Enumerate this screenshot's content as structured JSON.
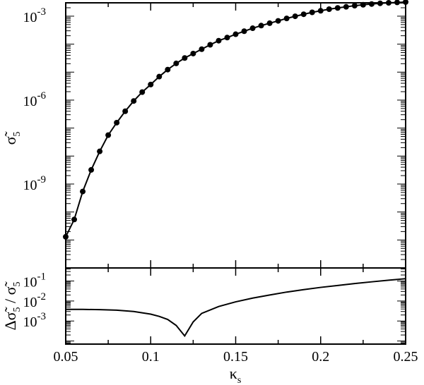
{
  "chart_data": [
    {
      "type": "scatter",
      "panel": "top",
      "xlabel": "κs",
      "ylabel": "σ̃5",
      "xlim": [
        0.05,
        0.25
      ],
      "ylim": [
        1e-12,
        0.003
      ],
      "yscale": "log",
      "xticks": [
        "0.05",
        "0.1",
        "0.15",
        "0.2",
        "0.25"
      ],
      "yticks": [
        {
          "value": 1e-09,
          "base": "10",
          "exp": "-9"
        },
        {
          "value": 1e-06,
          "base": "10",
          "exp": "-6"
        },
        {
          "value": 0.001,
          "base": "10",
          "exp": "-3"
        }
      ],
      "line_color": "#000000",
      "marker": "filled-circle",
      "series": [
        {
          "x": [
            0.05,
            0.055,
            0.06,
            0.065,
            0.07,
            0.075,
            0.08,
            0.085,
            0.09,
            0.095,
            0.1,
            0.105,
            0.11,
            0.115,
            0.12,
            0.125,
            0.13,
            0.135,
            0.14,
            0.145,
            0.15,
            0.155,
            0.16,
            0.165,
            0.17,
            0.175,
            0.18,
            0.185,
            0.19,
            0.195,
            0.2,
            0.205,
            0.21,
            0.215,
            0.22,
            0.225,
            0.23,
            0.235,
            0.24,
            0.245,
            0.25
          ],
          "y": [
            1.3e-11,
            5.4e-11,
            5.4e-10,
            3.2e-09,
            1.47e-08,
            5.6e-08,
            1.56e-07,
            4e-07,
            9.3e-07,
            1.93e-06,
            3.6e-06,
            6.9e-06,
            1.23e-05,
            2.05e-05,
            3.2e-05,
            4.6e-05,
            6.6e-05,
            9.5e-05,
            0.000133,
            0.000172,
            0.000226,
            0.00029,
            0.00037,
            0.00046,
            0.00056,
            0.00068,
            0.00083,
            0.00099,
            0.00117,
            0.00137,
            0.00156,
            0.00178,
            0.00197,
            0.00216,
            0.00237,
            0.00255,
            0.00272,
            0.00288,
            0.003,
            0.0031,
            0.0032
          ]
        }
      ]
    },
    {
      "type": "line",
      "panel": "bottom",
      "xlabel": "κs",
      "ylabel": "Δσ̃5 / σ̃5",
      "xlim": [
        0.05,
        0.25
      ],
      "ylim": [
        7e-05,
        0.45
      ],
      "yscale": "log",
      "yticks": [
        {
          "value": 0.001,
          "base": "10",
          "exp": "-3"
        },
        {
          "value": 0.01,
          "base": "10",
          "exp": "-2"
        },
        {
          "value": 0.1,
          "base": "10",
          "exp": "-1"
        }
      ],
      "line_color": "#000000",
      "series": [
        {
          "x": [
            0.05,
            0.06,
            0.07,
            0.08,
            0.09,
            0.1,
            0.105,
            0.11,
            0.115,
            0.12,
            0.125,
            0.13,
            0.14,
            0.15,
            0.16,
            0.17,
            0.18,
            0.19,
            0.2,
            0.21,
            0.22,
            0.23,
            0.24,
            0.25
          ],
          "y": [
            0.0038,
            0.0038,
            0.0037,
            0.0035,
            0.003,
            0.0022,
            0.0017,
            0.0012,
            0.0006,
            0.00018,
            0.0009,
            0.0024,
            0.0053,
            0.0091,
            0.014,
            0.02,
            0.028,
            0.037,
            0.048,
            0.06,
            0.075,
            0.091,
            0.11,
            0.13
          ]
        }
      ]
    }
  ]
}
